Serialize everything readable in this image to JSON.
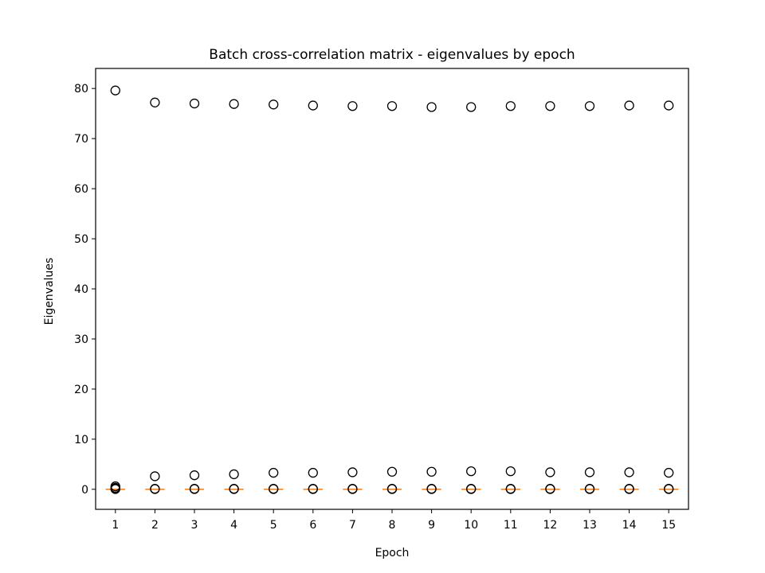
{
  "chart_data": {
    "type": "box",
    "title": "Batch cross-correlation matrix - eigenvalues by epoch",
    "xlabel": "Epoch",
    "ylabel": "Eigenvalues",
    "x_categories": [
      "1",
      "2",
      "3",
      "4",
      "5",
      "6",
      "7",
      "8",
      "9",
      "10",
      "11",
      "12",
      "13",
      "14",
      "15"
    ],
    "xlim": [
      0.5,
      15.5
    ],
    "ylim": [
      -4,
      84
    ],
    "y_ticks": [
      0,
      10,
      20,
      30,
      40,
      50,
      60,
      70,
      80
    ],
    "grid": false,
    "colors": {
      "median": "#ff7f0e",
      "box": "#000000",
      "outlier": "#000000"
    },
    "boxes": [
      {
        "epoch": "1",
        "median": 0,
        "outliers": [
          79.6,
          0.6,
          0.3,
          0.1,
          0.05
        ]
      },
      {
        "epoch": "2",
        "median": 0,
        "outliers": [
          77.2,
          2.6,
          0.1,
          0.05
        ]
      },
      {
        "epoch": "3",
        "median": 0,
        "outliers": [
          77.0,
          2.8,
          0.1,
          0.05
        ]
      },
      {
        "epoch": "4",
        "median": 0,
        "outliers": [
          76.9,
          3.0,
          0.1,
          0.05
        ]
      },
      {
        "epoch": "5",
        "median": 0,
        "outliers": [
          76.8,
          3.3,
          0.1,
          0.05
        ]
      },
      {
        "epoch": "6",
        "median": 0,
        "outliers": [
          76.6,
          3.3,
          0.1,
          0.05
        ]
      },
      {
        "epoch": "7",
        "median": 0,
        "outliers": [
          76.5,
          3.4,
          0.1,
          0.05
        ]
      },
      {
        "epoch": "8",
        "median": 0,
        "outliers": [
          76.5,
          3.5,
          0.1,
          0.05
        ]
      },
      {
        "epoch": "9",
        "median": 0,
        "outliers": [
          76.3,
          3.5,
          0.1,
          0.05
        ]
      },
      {
        "epoch": "10",
        "median": 0,
        "outliers": [
          76.3,
          3.6,
          0.1,
          0.05
        ]
      },
      {
        "epoch": "11",
        "median": 0,
        "outliers": [
          76.5,
          3.6,
          0.1,
          0.05
        ]
      },
      {
        "epoch": "12",
        "median": 0,
        "outliers": [
          76.5,
          3.4,
          0.1,
          0.05
        ]
      },
      {
        "epoch": "13",
        "median": 0,
        "outliers": [
          76.5,
          3.4,
          0.1,
          0.05
        ]
      },
      {
        "epoch": "14",
        "median": 0,
        "outliers": [
          76.6,
          3.4,
          0.1,
          0.05
        ]
      },
      {
        "epoch": "15",
        "median": 0,
        "outliers": [
          76.6,
          3.3,
          0.1,
          0.05
        ]
      }
    ]
  }
}
